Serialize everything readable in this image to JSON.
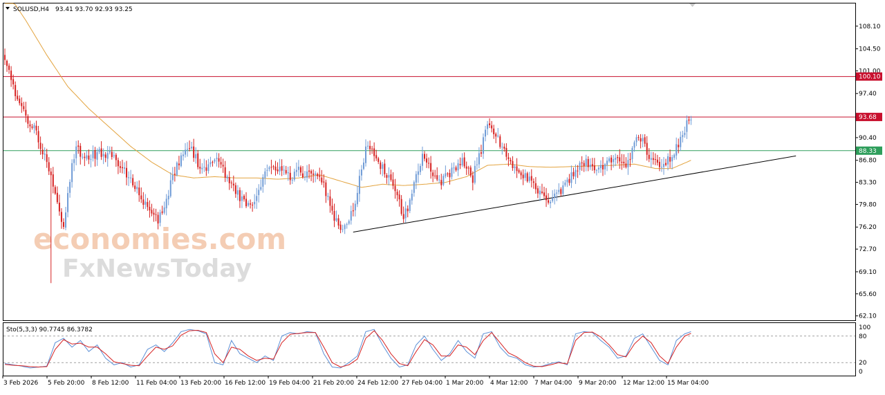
{
  "header": {
    "symbol": "SOLUSD,H4",
    "ohlc": "93.41 93.70 92.93 93.25",
    "indicator_label": "Sto(5,3,3) 90.7745 86.3782"
  },
  "colors": {
    "bull": "#6f9bd6",
    "bear": "#d62020",
    "ma": "#e3a33e",
    "resistance": "#c8102e",
    "support": "#2e9e5b",
    "trendline": "#000000",
    "stoch_main": "#5b8fd6",
    "stoch_signal": "#d62020",
    "grid": "#c0c0c0"
  },
  "watermark": {
    "line1": "economies.com",
    "line2": "FxNewsToday"
  },
  "chart_data": {
    "type": "candlestick",
    "y_ticks": [
      "108.10",
      "104.50",
      "101.00",
      "97.40",
      "93.85",
      "90.40",
      "86.80",
      "83.30",
      "79.80",
      "76.20",
      "72.70",
      "69.10",
      "65.60",
      "62.10"
    ],
    "ylim": [
      61.4,
      111.7
    ],
    "x_ticks": [
      "3 Feb 2026",
      "5 Feb 20:00",
      "8 Feb 12:00",
      "11 Feb 04:00",
      "13 Feb 20:00",
      "16 Feb 12:00",
      "19 Feb 04:00",
      "21 Feb 20:00",
      "24 Feb 12:00",
      "27 Feb 04:00",
      "1 Mar 20:00",
      "4 Mar 12:00",
      "7 Mar 04:00",
      "9 Mar 20:00",
      "12 Mar 12:00",
      "15 Mar 04:00"
    ],
    "levels": [
      {
        "label": "100.10",
        "value": 100.1,
        "color": "#c8102e"
      },
      {
        "label": "93.68",
        "value": 93.68,
        "color": "#c8102e"
      },
      {
        "label": "88.33",
        "value": 88.33,
        "color": "#2e9e5b"
      }
    ],
    "trendline": {
      "from": [
        "21 Feb 20:00",
        75.4
      ],
      "to": [
        "16 Mar 00:00",
        87.5
      ]
    },
    "price_anchors": [
      [
        0,
        103.5
      ],
      [
        5,
        97.5
      ],
      [
        10,
        94.0
      ],
      [
        15,
        91.0
      ],
      [
        20,
        86.5
      ],
      [
        25,
        80.0
      ],
      [
        28,
        76.5
      ],
      [
        31,
        84.0
      ],
      [
        34,
        89.0
      ],
      [
        38,
        86.8
      ],
      [
        44,
        88.0
      ],
      [
        50,
        87.5
      ],
      [
        56,
        86.0
      ],
      [
        62,
        82.5
      ],
      [
        66,
        80.0
      ],
      [
        70,
        78.5
      ],
      [
        73,
        77.5
      ],
      [
        76,
        79.0
      ],
      [
        80,
        84.5
      ],
      [
        84,
        87.0
      ],
      [
        88,
        89.0
      ],
      [
        92,
        86.5
      ],
      [
        96,
        85.0
      ],
      [
        100,
        87.0
      ],
      [
        104,
        85.5
      ],
      [
        108,
        82.5
      ],
      [
        112,
        81.0
      ],
      [
        116,
        79.5
      ],
      [
        120,
        80.5
      ],
      [
        124,
        84.5
      ],
      [
        128,
        85.5
      ],
      [
        132,
        85.0
      ],
      [
        136,
        84.0
      ],
      [
        140,
        85.0
      ],
      [
        144,
        84.5
      ],
      [
        148,
        84.0
      ],
      [
        152,
        83.0
      ],
      [
        156,
        78.5
      ],
      [
        160,
        76.5
      ],
      [
        163,
        76.0
      ],
      [
        166,
        79.0
      ],
      [
        169,
        84.0
      ],
      [
        172,
        88.5
      ],
      [
        175,
        88.0
      ],
      [
        179,
        86.0
      ],
      [
        183,
        84.0
      ],
      [
        187,
        81.0
      ],
      [
        190,
        77.5
      ],
      [
        193,
        80.5
      ],
      [
        196,
        84.0
      ],
      [
        199,
        87.5
      ],
      [
        203,
        85.0
      ],
      [
        207,
        83.0
      ],
      [
        211,
        84.5
      ],
      [
        215,
        86.0
      ],
      [
        219,
        86.5
      ],
      [
        223,
        84.0
      ],
      [
        227,
        88.5
      ],
      [
        230,
        92.5
      ],
      [
        233,
        91.5
      ],
      [
        236,
        89.5
      ],
      [
        240,
        87.5
      ],
      [
        244,
        85.0
      ],
      [
        248,
        84.0
      ],
      [
        252,
        83.0
      ],
      [
        256,
        81.5
      ],
      [
        260,
        80.5
      ],
      [
        263,
        81.0
      ],
      [
        266,
        82.5
      ],
      [
        270,
        84.5
      ],
      [
        274,
        86.0
      ],
      [
        278,
        86.5
      ],
      [
        282,
        85.5
      ],
      [
        286,
        86.0
      ],
      [
        290,
        86.8
      ],
      [
        294,
        86.0
      ],
      [
        297,
        86.5
      ],
      [
        300,
        89.5
      ],
      [
        303,
        90.5
      ],
      [
        306,
        88.0
      ],
      [
        309,
        87.0
      ],
      [
        312,
        86.0
      ],
      [
        316,
        87.0
      ],
      [
        319,
        88.0
      ],
      [
        322,
        90.5
      ],
      [
        325,
        92.5
      ],
      [
        327,
        93.25
      ]
    ],
    "ma_anchors": [
      [
        0,
        114.0
      ],
      [
        10,
        109.0
      ],
      [
        20,
        103.5
      ],
      [
        30,
        98.5
      ],
      [
        40,
        95.0
      ],
      [
        50,
        92.0
      ],
      [
        60,
        89.0
      ],
      [
        70,
        86.5
      ],
      [
        80,
        84.5
      ],
      [
        90,
        84.0
      ],
      [
        100,
        84.2
      ],
      [
        110,
        84.0
      ],
      [
        120,
        84.0
      ],
      [
        130,
        83.8
      ],
      [
        140,
        84.0
      ],
      [
        150,
        84.5
      ],
      [
        160,
        83.5
      ],
      [
        170,
        82.5
      ],
      [
        180,
        83.0
      ],
      [
        190,
        82.8
      ],
      [
        200,
        83.0
      ],
      [
        210,
        83.3
      ],
      [
        220,
        84.2
      ],
      [
        230,
        86.0
      ],
      [
        240,
        86.2
      ],
      [
        250,
        85.8
      ],
      [
        260,
        85.7
      ],
      [
        270,
        85.8
      ],
      [
        280,
        85.9
      ],
      [
        290,
        86.0
      ],
      [
        300,
        86.2
      ],
      [
        310,
        85.5
      ],
      [
        318,
        85.5
      ],
      [
        327,
        86.8
      ]
    ],
    "sub_chart": {
      "type": "line",
      "name": "Sto(5,3,3)",
      "ylim": [
        0,
        100
      ],
      "y_ticks": [
        "100",
        "80",
        "20",
        "0"
      ],
      "levels": [
        80,
        20
      ],
      "main_anchors": [
        [
          0,
          18
        ],
        [
          4,
          15
        ],
        [
          8,
          12
        ],
        [
          12,
          8
        ],
        [
          16,
          10
        ],
        [
          20,
          12
        ],
        [
          24,
          65
        ],
        [
          28,
          75
        ],
        [
          32,
          55
        ],
        [
          36,
          70
        ],
        [
          40,
          45
        ],
        [
          44,
          60
        ],
        [
          48,
          30
        ],
        [
          52,
          15
        ],
        [
          56,
          20
        ],
        [
          60,
          10
        ],
        [
          64,
          15
        ],
        [
          68,
          50
        ],
        [
          72,
          60
        ],
        [
          76,
          45
        ],
        [
          80,
          65
        ],
        [
          84,
          90
        ],
        [
          88,
          95
        ],
        [
          92,
          92
        ],
        [
          96,
          85
        ],
        [
          100,
          20
        ],
        [
          104,
          15
        ],
        [
          108,
          70
        ],
        [
          112,
          40
        ],
        [
          116,
          30
        ],
        [
          120,
          20
        ],
        [
          124,
          35
        ],
        [
          128,
          25
        ],
        [
          132,
          80
        ],
        [
          136,
          88
        ],
        [
          140,
          85
        ],
        [
          144,
          90
        ],
        [
          148,
          88
        ],
        [
          152,
          40
        ],
        [
          156,
          10
        ],
        [
          160,
          8
        ],
        [
          164,
          20
        ],
        [
          168,
          35
        ],
        [
          172,
          90
        ],
        [
          176,
          95
        ],
        [
          180,
          60
        ],
        [
          184,
          30
        ],
        [
          188,
          10
        ],
        [
          192,
          15
        ],
        [
          196,
          60
        ],
        [
          200,
          80
        ],
        [
          204,
          50
        ],
        [
          208,
          25
        ],
        [
          212,
          40
        ],
        [
          216,
          70
        ],
        [
          220,
          45
        ],
        [
          224,
          30
        ],
        [
          228,
          85
        ],
        [
          232,
          90
        ],
        [
          236,
          55
        ],
        [
          240,
          35
        ],
        [
          244,
          30
        ],
        [
          248,
          15
        ],
        [
          252,
          10
        ],
        [
          256,
          12
        ],
        [
          260,
          18
        ],
        [
          264,
          22
        ],
        [
          268,
          15
        ],
        [
          272,
          85
        ],
        [
          276,
          90
        ],
        [
          280,
          88
        ],
        [
          284,
          70
        ],
        [
          288,
          55
        ],
        [
          292,
          30
        ],
        [
          296,
          35
        ],
        [
          300,
          75
        ],
        [
          304,
          85
        ],
        [
          308,
          55
        ],
        [
          312,
          25
        ],
        [
          316,
          15
        ],
        [
          320,
          70
        ],
        [
          324,
          85
        ],
        [
          327,
          90
        ]
      ],
      "signal_anchors": [
        [
          0,
          16
        ],
        [
          4,
          14
        ],
        [
          8,
          13
        ],
        [
          12,
          11
        ],
        [
          16,
          10
        ],
        [
          20,
          11
        ],
        [
          24,
          50
        ],
        [
          28,
          72
        ],
        [
          32,
          62
        ],
        [
          36,
          64
        ],
        [
          40,
          55
        ],
        [
          44,
          55
        ],
        [
          48,
          40
        ],
        [
          52,
          22
        ],
        [
          56,
          18
        ],
        [
          60,
          14
        ],
        [
          64,
          13
        ],
        [
          68,
          35
        ],
        [
          72,
          55
        ],
        [
          76,
          50
        ],
        [
          80,
          58
        ],
        [
          84,
          82
        ],
        [
          88,
          92
        ],
        [
          92,
          93
        ],
        [
          96,
          88
        ],
        [
          100,
          40
        ],
        [
          104,
          20
        ],
        [
          108,
          55
        ],
        [
          112,
          50
        ],
        [
          116,
          35
        ],
        [
          120,
          25
        ],
        [
          124,
          30
        ],
        [
          128,
          28
        ],
        [
          132,
          65
        ],
        [
          136,
          84
        ],
        [
          140,
          86
        ],
        [
          144,
          88
        ],
        [
          148,
          88
        ],
        [
          152,
          55
        ],
        [
          156,
          20
        ],
        [
          160,
          10
        ],
        [
          164,
          15
        ],
        [
          168,
          28
        ],
        [
          172,
          75
        ],
        [
          176,
          92
        ],
        [
          180,
          70
        ],
        [
          184,
          40
        ],
        [
          188,
          18
        ],
        [
          192,
          13
        ],
        [
          196,
          45
        ],
        [
          200,
          72
        ],
        [
          204,
          60
        ],
        [
          208,
          35
        ],
        [
          212,
          35
        ],
        [
          216,
          60
        ],
        [
          220,
          55
        ],
        [
          224,
          38
        ],
        [
          228,
          70
        ],
        [
          232,
          88
        ],
        [
          236,
          65
        ],
        [
          240,
          42
        ],
        [
          244,
          33
        ],
        [
          248,
          20
        ],
        [
          252,
          12
        ],
        [
          256,
          11
        ],
        [
          260,
          15
        ],
        [
          264,
          20
        ],
        [
          268,
          17
        ],
        [
          272,
          70
        ],
        [
          276,
          88
        ],
        [
          280,
          89
        ],
        [
          284,
          78
        ],
        [
          288,
          60
        ],
        [
          292,
          38
        ],
        [
          296,
          33
        ],
        [
          300,
          62
        ],
        [
          304,
          80
        ],
        [
          308,
          65
        ],
        [
          312,
          35
        ],
        [
          316,
          18
        ],
        [
          320,
          55
        ],
        [
          324,
          80
        ],
        [
          327,
          86
        ]
      ]
    }
  }
}
